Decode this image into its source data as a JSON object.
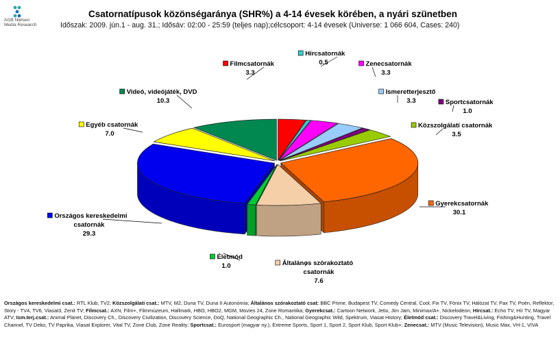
{
  "logo": {
    "line1": "AGB Nielsen",
    "line2": "Media Research",
    "icon": "agb-nielsen-logo"
  },
  "header": {
    "title": "Csatornatípusok közönségaránya (SHR%) a 4-14 évesek körében, a nyári szünetben",
    "subtitle": "Időszak: 2009. jún.1 - aug. 31.; Idősáv: 02:00 - 25:59 (teljes nap);célcsoport: 4-14 évesek (Universe: 1 066 604, Cases: 240)"
  },
  "chart_data": {
    "type": "pie",
    "style": "3d-exploded",
    "slices": [
      {
        "name": "Filmcsatornák",
        "value": 3.3,
        "value_label": "3.3",
        "color": "#ff0000"
      },
      {
        "name": "Hírcsatornák",
        "value": 0.5,
        "value_label": "0.5",
        "color": "#33cccc"
      },
      {
        "name": "Zenecsatornák",
        "value": 3.3,
        "value_label": "3.3",
        "color": "#ff00ff"
      },
      {
        "name": "Ismeretterjesztő",
        "value": 3.3,
        "value_label": "3.3",
        "color": "#99ccff"
      },
      {
        "name": "Sportcsatornák",
        "value": 1.0,
        "value_label": "1.0",
        "color": "#800080"
      },
      {
        "name": "Közszolgálati csatornák",
        "value": 3.5,
        "value_label": "3.5",
        "color": "#99cc00"
      },
      {
        "name": "Gyerekcsatornák",
        "value": 30.1,
        "value_label": "30.1",
        "color": "#ff6600"
      },
      {
        "name": "Általános szórakoztató csatornák",
        "value": 7.6,
        "value_label": "7.6",
        "color": "#f5cfa8"
      },
      {
        "name": "Életmód",
        "value": 1.0,
        "value_label": "1.0",
        "color": "#00cc33"
      },
      {
        "name": "Országos kereskedelmi csatornák",
        "value": 29.3,
        "value_label": "29.3",
        "color": "#0000ee"
      },
      {
        "name": "Egyéb csatornák",
        "value": 7.0,
        "value_label": "7.0",
        "color": "#ffff00"
      },
      {
        "name": "Videó, videójáték, DVD",
        "value": 10.3,
        "value_label": "10.3",
        "color": "#008850"
      }
    ]
  },
  "footer": {
    "items": [
      {
        "label": "Országos kereskedelmi csat.:",
        "text": "RTL Klub, TV2;"
      },
      {
        "label": "Közszolgálati csat.:",
        "text": "MTV, M2, Duna TV, Duna II Autonómia;"
      },
      {
        "label": "Általános szórakoztató csat:",
        "text": "BBC Prime, Budapest TV, Comedy Central, Cool, Fix TV, Fönix TV, Hálózat TV, Pax TV, Poén, Reflektor, Story - TV4, TV6, Viasat3, Zenit TV;"
      },
      {
        "label": "Filmcsat.:",
        "text": "AXN, Film+, Filmmúzeum, Hallmark, HBO, HBO2, MGM, Movies 24, Zone Romantika;"
      },
      {
        "label": "Gyerekcsat.:",
        "text": "Cartoon Network, Jetix, Jim Jam, Minimax/A+, Nickelodeon;"
      },
      {
        "label": "Hírcsat.:",
        "text": "Echo TV, Hír TV, Magyar ATV;"
      },
      {
        "label": "Ism.terj.csat.:",
        "text": "Animal Planet, Discovery Ch., Discovery Civilization, Discovery Science, DoQ, National Geographic Ch., National Geographic Wild, Spektrum, Viasat History;"
      },
      {
        "label": "Életmód csat.:",
        "text": "Discovery Travel&Living, Fishing&Hunting, Travel Channel, TV Deko, TV Paprika, Viasat Explorer, Vital TV, Zone Club, Zone Reality;"
      },
      {
        "label": "Sportcsat.:",
        "text": "Eurosport (magyar ny.), Extreme Sports, Sport 1, Sport 2, Sport Klub, Sport Klub+;"
      },
      {
        "label": "Zenecsat.:",
        "text": "MTV (Music Television), Music Max, VH-1, VIVA"
      }
    ]
  }
}
